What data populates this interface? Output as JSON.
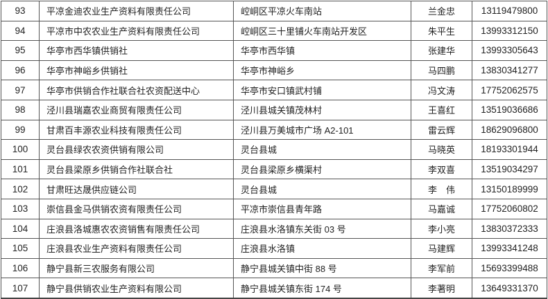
{
  "rows": [
    {
      "no": "93",
      "name": "平凉金迪农业生产资料有限责任公司",
      "address": "崆峒区平凉火车南站",
      "contact": "兰金忠",
      "phone": "13119479800"
    },
    {
      "no": "94",
      "name": "平凉市中农农业生产资料有限责任公司",
      "address": "崆峒区三十里铺火车南站开发区",
      "contact": "朱平生",
      "phone": "13993312150"
    },
    {
      "no": "95",
      "name": "华亭市西华镇供销社",
      "address": "华亭市西华镇",
      "contact": "张建华",
      "phone": "13993305643"
    },
    {
      "no": "96",
      "name": "华亭市神峪乡供销社",
      "address": "华亭市神峪乡",
      "contact": "马四鹏",
      "phone": "13830341277"
    },
    {
      "no": "97",
      "name": "华亭市供销合作社联合社农资配送中心",
      "address": "华亭市安口镇武村铺",
      "contact": "冯文涛",
      "phone": "17752062575"
    },
    {
      "no": "98",
      "name": "泾川县瑞嘉农业商贸有限责任公司",
      "address": "泾川县城关镇茂林村",
      "contact": "王喜红",
      "phone": "13519036686"
    },
    {
      "no": "99",
      "name": "甘肃百丰源农业科技有限责任公司",
      "address": "泾川县万美城市广场 A2-101",
      "contact": "雷云辉",
      "phone": "18629096800"
    },
    {
      "no": "100",
      "name": "灵台县绿农农资供销有限公司",
      "address": "灵台县城",
      "contact": "马晓英",
      "phone": "18193301944"
    },
    {
      "no": "101",
      "name": "灵台县梁原乡供销合作社联合社",
      "address": "灵台县梁原乡横渠村",
      "contact": "李双喜",
      "phone": "13519034297"
    },
    {
      "no": "102",
      "name": "甘肃旺达晟供应链公司",
      "address": "灵台县城",
      "contact": "李　伟",
      "phone": "13150189999"
    },
    {
      "no": "103",
      "name": "崇信县金马供销农资有限责任公司",
      "address": "平凉市崇信县青年路",
      "contact": "马嘉诚",
      "phone": "17752060802"
    },
    {
      "no": "104",
      "name": "庄浪县洛城惠农农资销售有限责任公司",
      "address": "庄浪县水洛镇东关街 03 号",
      "contact": "李小亮",
      "phone": "13830372333"
    },
    {
      "no": "105",
      "name": "庄浪县农业生产资料有限责任公司",
      "address": "庄浪县水洛镇",
      "contact": "马建辉",
      "phone": "13993341248"
    },
    {
      "no": "106",
      "name": "静宁县新三农服务有限公司",
      "address": "静宁县城关镇中街 88 号",
      "contact": "李军前",
      "phone": "15693399488"
    },
    {
      "no": "107",
      "name": "静宁县供销农业生产资料有限公司",
      "address": "静宁县城关镇东街 174 号",
      "contact": "李著明",
      "phone": "13649331370"
    }
  ]
}
